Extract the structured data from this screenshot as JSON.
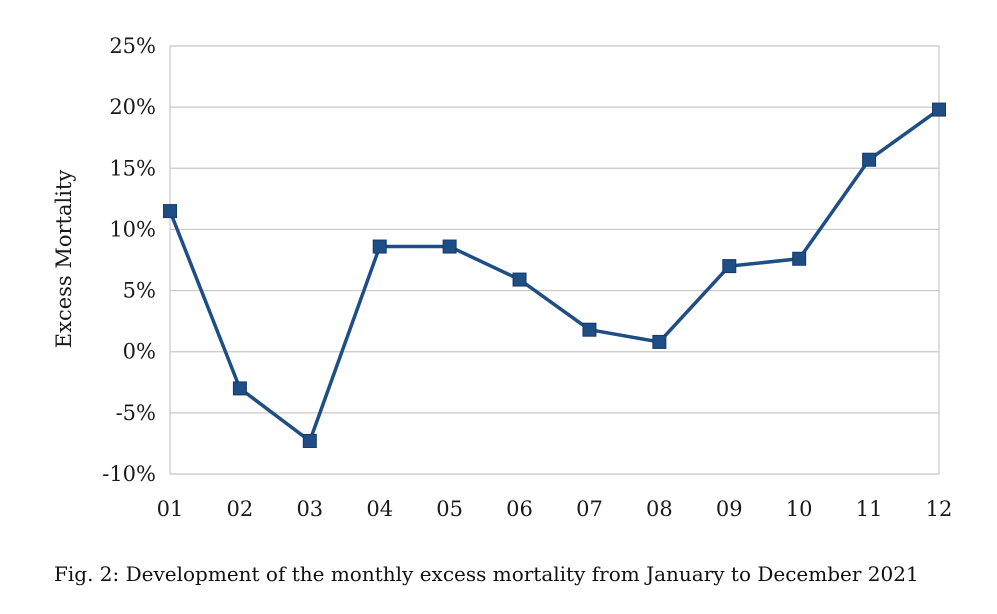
{
  "chart_data": {
    "type": "line",
    "title": "",
    "xlabel": "",
    "ylabel": "Excess Mortality",
    "categories": [
      "01",
      "02",
      "03",
      "04",
      "05",
      "06",
      "07",
      "08",
      "09",
      "10",
      "11",
      "12"
    ],
    "series": [
      {
        "values": [
          11.5,
          -3.0,
          -7.3,
          8.6,
          8.6,
          5.9,
          1.8,
          0.8,
          7.0,
          7.6,
          15.7,
          19.8
        ]
      }
    ],
    "ylim": [
      -10,
      25
    ],
    "yticks": [
      -10,
      -5,
      0,
      5,
      10,
      15,
      20,
      25
    ],
    "ytick_labels": [
      "-10%",
      "-5%",
      "0%",
      "5%",
      "10%",
      "15%",
      "20%",
      "25%"
    ],
    "grid": "horizontal",
    "legend": "none",
    "line_color": "#1f4e85",
    "marker": "square",
    "grid_color": "#c8c8c8"
  },
  "caption": "Fig. 2: Development of the monthly excess mortality from January to December 2021"
}
